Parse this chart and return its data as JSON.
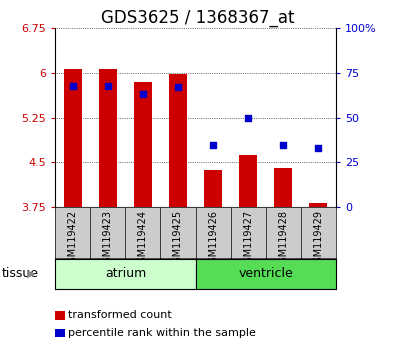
{
  "title": "GDS3625 / 1368367_at",
  "samples": [
    "GSM119422",
    "GSM119423",
    "GSM119424",
    "GSM119425",
    "GSM119426",
    "GSM119427",
    "GSM119428",
    "GSM119429"
  ],
  "bar_values": [
    6.07,
    6.07,
    5.85,
    5.98,
    4.38,
    4.62,
    4.4,
    3.82
  ],
  "bar_baseline": 3.75,
  "bar_color": "#cc0000",
  "blue_values_pct": [
    68,
    68,
    63,
    67,
    35,
    50,
    35,
    33
  ],
  "blue_color": "#0000cc",
  "ylim": [
    3.75,
    6.75
  ],
  "y2lim": [
    0,
    100
  ],
  "yticks": [
    3.75,
    4.5,
    5.25,
    6.0,
    6.75
  ],
  "ytick_labels": [
    "3.75",
    "4.5",
    "5.25",
    "6",
    "6.75"
  ],
  "y2ticks": [
    0,
    25,
    50,
    75,
    100
  ],
  "y2tick_labels": [
    "0",
    "25",
    "50",
    "75",
    "100%"
  ],
  "atrium_color": "#ccffcc",
  "ventricle_color": "#55dd55",
  "sample_box_color": "#cccccc",
  "tissue_label": "tissue",
  "legend_items": [
    {
      "label": "transformed count",
      "color": "#cc0000"
    },
    {
      "label": "percentile rank within the sample",
      "color": "#0000cc"
    }
  ],
  "bar_width": 0.5,
  "bg_color": "#ffffff",
  "plot_bg": "#ffffff",
  "left_tick_color": "#cc0000",
  "right_tick_color": "#0000cc",
  "title_fontsize": 12,
  "tick_fontsize": 8,
  "legend_fontsize": 8,
  "sample_fontsize": 7,
  "tissue_fontsize": 9
}
